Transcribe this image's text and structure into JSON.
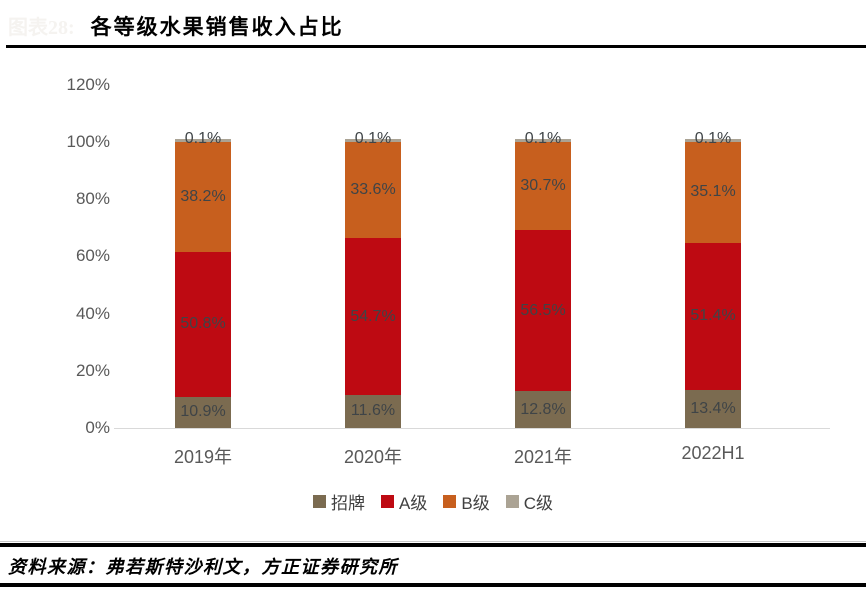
{
  "header": {
    "figure_prefix": "图表28:",
    "title": "各等级水果销售收入占比"
  },
  "chart_data": {
    "type": "bar",
    "stacked": true,
    "title": "各等级水果销售收入占比",
    "categories": [
      "2019年",
      "2020年",
      "2021年",
      "2022H1"
    ],
    "series": [
      {
        "name": "招牌",
        "color": "#7B6B50",
        "values": [
          10.9,
          11.6,
          12.8,
          13.4
        ]
      },
      {
        "name": "A级",
        "color": "#BE0A12",
        "values": [
          50.8,
          54.7,
          56.5,
          51.4
        ]
      },
      {
        "name": "B级",
        "color": "#C75F1E",
        "values": [
          38.2,
          33.6,
          30.7,
          35.1
        ]
      },
      {
        "name": "C级",
        "color": "#ABA394",
        "values": [
          0.1,
          0.1,
          0.1,
          0.1
        ]
      }
    ],
    "y_ticks": [
      "0%",
      "20%",
      "40%",
      "60%",
      "80%",
      "100%",
      "120%"
    ],
    "ylim": [
      0,
      120
    ],
    "grid": false,
    "legend_position": "bottom",
    "data_labels": true,
    "label_format": "{value}%",
    "colors": {
      "axis_text": "#595959",
      "data_label_text": "#3f4447",
      "baseline": "#d9d9d9"
    }
  },
  "footer": {
    "source": "资料来源：弗若斯特沙利文，方正证券研究所"
  }
}
